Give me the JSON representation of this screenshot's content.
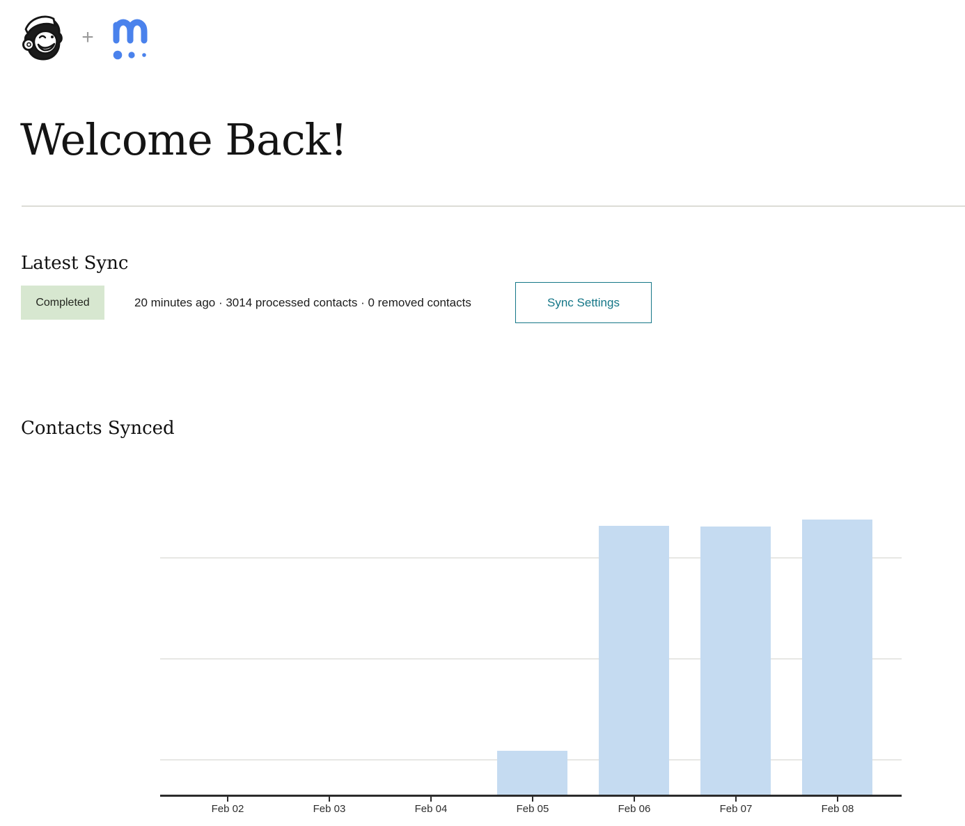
{
  "header": {
    "plus": "+"
  },
  "page": {
    "title": "Welcome Back!"
  },
  "latest_sync": {
    "heading": "Latest Sync",
    "status": "Completed",
    "summary": "20 minutes ago · 3014 processed contacts · 0 removed contacts",
    "settings_button": "Sync Settings"
  },
  "contacts_synced": {
    "heading": "Contacts Synced"
  },
  "chart_data": {
    "type": "bar",
    "title": "Contacts Synced",
    "categories": [
      "Feb 02",
      "Feb 03",
      "Feb 04",
      "Feb 05",
      "Feb 06",
      "Feb 07",
      "Feb 08"
    ],
    "values": [
      0,
      0,
      0,
      480,
      2950,
      2940,
      3014
    ],
    "xlabel": "",
    "ylabel": "",
    "ylim": [
      0,
      3300
    ],
    "grid": true,
    "gridline_count": 3,
    "legend": "none",
    "bar_color": "#c5dbf1"
  },
  "colors": {
    "accent_teal": "#147687",
    "badge_bg": "#d7e7d0",
    "badge_text": "#23261f",
    "bar_fill": "#c5dbf1",
    "brand_blue": "#4a82ec"
  }
}
